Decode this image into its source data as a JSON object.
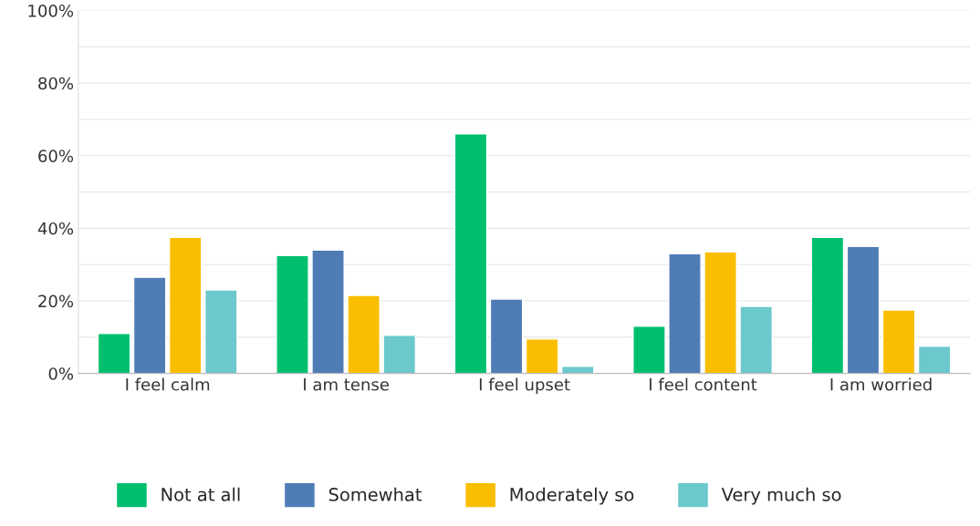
{
  "chart_data": {
    "type": "bar",
    "categories": [
      "I feel calm",
      "I am tense",
      "I feel upset",
      "I feel content",
      "I am worried"
    ],
    "series": [
      {
        "name": "Not at all",
        "color": "#00bf6f",
        "values": [
          11,
          32.5,
          66,
          13,
          37.5
        ]
      },
      {
        "name": "Somewhat",
        "color": "#507cb6",
        "values": [
          26.5,
          34,
          20.5,
          33,
          35
        ]
      },
      {
        "name": "Moderately so",
        "color": "#f9be00",
        "values": [
          37.5,
          21.5,
          9.5,
          33.5,
          17.5
        ]
      },
      {
        "name": "Very much so",
        "color": "#6bc8cd",
        "values": [
          23,
          10.5,
          2,
          18.5,
          7.5
        ]
      }
    ],
    "ylim": [
      0,
      100
    ],
    "yticks": [
      {
        "value": 0,
        "label": "0%"
      },
      {
        "value": 10,
        "label": null
      },
      {
        "value": 20,
        "label": "20%"
      },
      {
        "value": 30,
        "label": null
      },
      {
        "value": 40,
        "label": "40%"
      },
      {
        "value": 50,
        "label": null
      },
      {
        "value": 60,
        "label": "60%"
      },
      {
        "value": 70,
        "label": null
      },
      {
        "value": 80,
        "label": "80%"
      },
      {
        "value": 90,
        "label": null
      },
      {
        "value": 100,
        "label": "100%"
      }
    ],
    "grid": "y",
    "legend": "bottom"
  }
}
